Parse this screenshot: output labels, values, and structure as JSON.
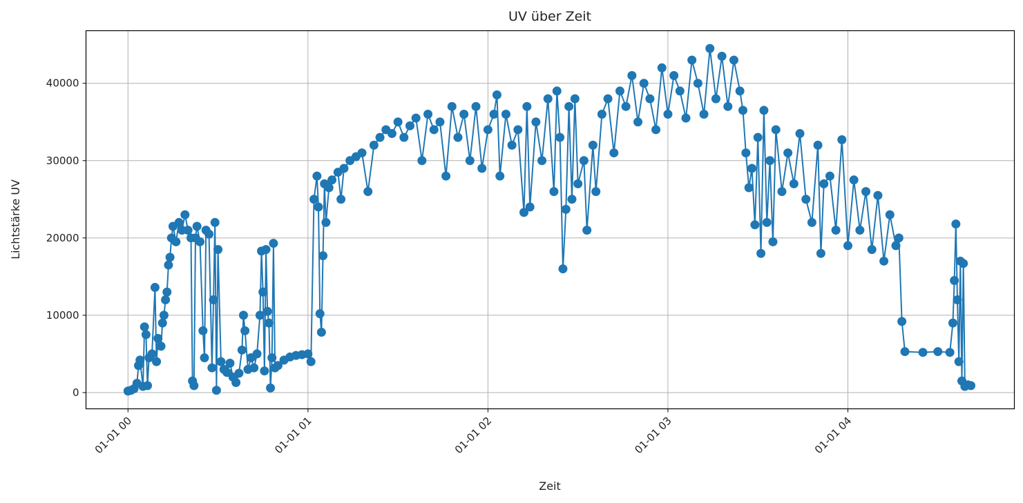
{
  "chart_data": {
    "type": "line",
    "title": "UV über Zeit",
    "xlabel": "Zeit",
    "ylabel": "Lichtstärke UV",
    "x_ticks": [
      "01-01 00",
      "01-01 01",
      "01-01 02",
      "01-01 03",
      "01-01 04"
    ],
    "y_ticks": [
      "0",
      "10000",
      "20000",
      "30000",
      "40000"
    ],
    "y_tick_values": [
      0,
      10000,
      20000,
      30000,
      40000
    ],
    "xlim": [
      "-0:14:00",
      "4:55:30"
    ],
    "ylim": [
      -2100,
      46800
    ],
    "grid": true,
    "marker": "circle",
    "color": "#1f77b4",
    "series": [
      {
        "points": [
          [
            "0:00:00",
            200
          ],
          [
            "0:01:00",
            300
          ],
          [
            "0:02:00",
            500
          ],
          [
            "0:03:00",
            1200
          ],
          [
            "0:03:30",
            3500
          ],
          [
            "0:04:00",
            4200
          ],
          [
            "0:05:00",
            800
          ],
          [
            "0:05:30",
            8500
          ],
          [
            "0:06:00",
            7500
          ],
          [
            "0:06:30",
            900
          ],
          [
            "0:07:00",
            4500
          ],
          [
            "0:08:00",
            5000
          ],
          [
            "0:09:00",
            13600
          ],
          [
            "0:09:30",
            4000
          ],
          [
            "0:10:00",
            7000
          ],
          [
            "0:11:00",
            6000
          ],
          [
            "0:11:30",
            9000
          ],
          [
            "0:12:00",
            10000
          ],
          [
            "0:12:30",
            12000
          ],
          [
            "0:13:00",
            13000
          ],
          [
            "0:13:30",
            16500
          ],
          [
            "0:14:00",
            17500
          ],
          [
            "0:14:30",
            20000
          ],
          [
            "0:15:00",
            21500
          ],
          [
            "0:16:00",
            19500
          ],
          [
            "0:17:00",
            22000
          ],
          [
            "0:18:00",
            21000
          ],
          [
            "0:19:00",
            23000
          ],
          [
            "0:20:00",
            21000
          ],
          [
            "0:21:00",
            20000
          ],
          [
            "0:21:30",
            1500
          ],
          [
            "0:22:00",
            900
          ],
          [
            "0:22:30",
            20000
          ],
          [
            "0:23:00",
            21500
          ],
          [
            "0:24:00",
            19500
          ],
          [
            "0:25:00",
            8000
          ],
          [
            "0:25:30",
            4500
          ],
          [
            "0:26:00",
            21000
          ],
          [
            "0:27:00",
            20500
          ],
          [
            "0:28:00",
            3200
          ],
          [
            "0:28:30",
            12000
          ],
          [
            "0:29:00",
            22000
          ],
          [
            "0:29:30",
            300
          ],
          [
            "0:30:00",
            18500
          ],
          [
            "0:31:00",
            4000
          ],
          [
            "0:32:00",
            3000
          ],
          [
            "0:33:00",
            2600
          ],
          [
            "0:34:00",
            3800
          ],
          [
            "0:35:00",
            2000
          ],
          [
            "0:36:00",
            1300
          ],
          [
            "0:37:00",
            2500
          ],
          [
            "0:38:00",
            5500
          ],
          [
            "0:38:30",
            10000
          ],
          [
            "0:39:00",
            8000
          ],
          [
            "0:40:00",
            3000
          ],
          [
            "0:41:00",
            4500
          ],
          [
            "0:42:00",
            3200
          ],
          [
            "0:43:00",
            5000
          ],
          [
            "0:44:00",
            10000
          ],
          [
            "0:44:30",
            18300
          ],
          [
            "0:45:00",
            13000
          ],
          [
            "0:45:30",
            2800
          ],
          [
            "0:46:00",
            18500
          ],
          [
            "0:46:30",
            10500
          ],
          [
            "0:47:00",
            9000
          ],
          [
            "0:47:30",
            600
          ],
          [
            "0:48:00",
            4500
          ],
          [
            "0:48:30",
            19300
          ],
          [
            "0:49:00",
            3200
          ],
          [
            "0:50:00",
            3500
          ],
          [
            "0:52:00",
            4200
          ],
          [
            "0:54:00",
            4600
          ],
          [
            "0:56:00",
            4800
          ],
          [
            "0:58:00",
            4900
          ],
          [
            "1:00:00",
            5000
          ],
          [
            "1:01:00",
            4000
          ],
          [
            "1:02:00",
            25000
          ],
          [
            "1:03:00",
            28000
          ],
          [
            "1:03:30",
            24000
          ],
          [
            "1:04:00",
            10200
          ],
          [
            "1:04:30",
            7800
          ],
          [
            "1:05:00",
            17700
          ],
          [
            "1:05:30",
            27000
          ],
          [
            "1:06:00",
            22000
          ],
          [
            "1:07:00",
            26500
          ],
          [
            "1:08:00",
            27500
          ],
          [
            "1:10:00",
            28500
          ],
          [
            "1:11:00",
            25000
          ],
          [
            "1:12:00",
            29000
          ],
          [
            "1:14:00",
            30000
          ],
          [
            "1:16:00",
            30500
          ],
          [
            "1:18:00",
            31000
          ],
          [
            "1:20:00",
            26000
          ],
          [
            "1:22:00",
            32000
          ],
          [
            "1:24:00",
            33000
          ],
          [
            "1:26:00",
            34000
          ],
          [
            "1:28:00",
            33500
          ],
          [
            "1:30:00",
            35000
          ],
          [
            "1:32:00",
            33000
          ],
          [
            "1:34:00",
            34500
          ],
          [
            "1:36:00",
            35500
          ],
          [
            "1:38:00",
            30000
          ],
          [
            "1:40:00",
            36000
          ],
          [
            "1:42:00",
            34000
          ],
          [
            "1:44:00",
            35000
          ],
          [
            "1:46:00",
            28000
          ],
          [
            "1:48:00",
            37000
          ],
          [
            "1:50:00",
            33000
          ],
          [
            "1:52:00",
            36000
          ],
          [
            "1:54:00",
            30000
          ],
          [
            "1:56:00",
            37000
          ],
          [
            "1:58:00",
            29000
          ],
          [
            "2:00:00",
            34000
          ],
          [
            "2:02:00",
            36000
          ],
          [
            "2:03:00",
            38500
          ],
          [
            "2:04:00",
            28000
          ],
          [
            "2:06:00",
            36000
          ],
          [
            "2:08:00",
            32000
          ],
          [
            "2:10:00",
            34000
          ],
          [
            "2:12:00",
            23300
          ],
          [
            "2:13:00",
            37000
          ],
          [
            "2:14:00",
            24000
          ],
          [
            "2:16:00",
            35000
          ],
          [
            "2:18:00",
            30000
          ],
          [
            "2:20:00",
            38000
          ],
          [
            "2:22:00",
            26000
          ],
          [
            "2:23:00",
            39000
          ],
          [
            "2:24:00",
            33000
          ],
          [
            "2:25:00",
            16000
          ],
          [
            "2:26:00",
            23700
          ],
          [
            "2:27:00",
            37000
          ],
          [
            "2:28:00",
            25000
          ],
          [
            "2:29:00",
            38000
          ],
          [
            "2:30:00",
            27000
          ],
          [
            "2:32:00",
            30000
          ],
          [
            "2:33:00",
            21000
          ],
          [
            "2:35:00",
            32000
          ],
          [
            "2:36:00",
            26000
          ],
          [
            "2:38:00",
            36000
          ],
          [
            "2:40:00",
            38000
          ],
          [
            "2:42:00",
            31000
          ],
          [
            "2:44:00",
            39000
          ],
          [
            "2:46:00",
            37000
          ],
          [
            "2:48:00",
            41000
          ],
          [
            "2:50:00",
            35000
          ],
          [
            "2:52:00",
            40000
          ],
          [
            "2:54:00",
            38000
          ],
          [
            "2:56:00",
            34000
          ],
          [
            "2:58:00",
            42000
          ],
          [
            "3:00:00",
            36000
          ],
          [
            "3:02:00",
            41000
          ],
          [
            "3:04:00",
            39000
          ],
          [
            "3:06:00",
            35500
          ],
          [
            "3:08:00",
            43000
          ],
          [
            "3:10:00",
            40000
          ],
          [
            "3:12:00",
            36000
          ],
          [
            "3:14:00",
            44500
          ],
          [
            "3:16:00",
            38000
          ],
          [
            "3:18:00",
            43500
          ],
          [
            "3:20:00",
            37000
          ],
          [
            "3:22:00",
            43000
          ],
          [
            "3:24:00",
            39000
          ],
          [
            "3:25:00",
            36500
          ],
          [
            "3:26:00",
            31000
          ],
          [
            "3:27:00",
            26500
          ],
          [
            "3:28:00",
            29000
          ],
          [
            "3:29:00",
            21700
          ],
          [
            "3:30:00",
            33000
          ],
          [
            "3:31:00",
            18000
          ],
          [
            "3:32:00",
            36500
          ],
          [
            "3:33:00",
            22000
          ],
          [
            "3:34:00",
            30000
          ],
          [
            "3:35:00",
            19500
          ],
          [
            "3:36:00",
            34000
          ],
          [
            "3:38:00",
            26000
          ],
          [
            "3:40:00",
            31000
          ],
          [
            "3:42:00",
            27000
          ],
          [
            "3:44:00",
            33500
          ],
          [
            "3:46:00",
            25000
          ],
          [
            "3:48:00",
            22000
          ],
          [
            "3:50:00",
            32000
          ],
          [
            "3:51:00",
            18000
          ],
          [
            "3:52:00",
            27000
          ],
          [
            "3:54:00",
            28000
          ],
          [
            "3:56:00",
            21000
          ],
          [
            "3:58:00",
            32700
          ],
          [
            "4:00:00",
            19000
          ],
          [
            "4:02:00",
            27500
          ],
          [
            "4:04:00",
            21000
          ],
          [
            "4:06:00",
            26000
          ],
          [
            "4:08:00",
            18500
          ],
          [
            "4:10:00",
            25500
          ],
          [
            "4:12:00",
            17000
          ],
          [
            "4:14:00",
            23000
          ],
          [
            "4:16:00",
            19000
          ],
          [
            "4:17:00",
            20000
          ],
          [
            "4:18:00",
            9200
          ],
          [
            "4:19:00",
            5300
          ],
          [
            "4:25:00",
            5200
          ],
          [
            "4:30:00",
            5300
          ],
          [
            "4:34:00",
            5200
          ],
          [
            "4:35:00",
            9000
          ],
          [
            "4:35:30",
            14500
          ],
          [
            "4:36:00",
            21800
          ],
          [
            "4:36:30",
            12000
          ],
          [
            "4:37:00",
            4000
          ],
          [
            "4:37:30",
            17000
          ],
          [
            "4:38:00",
            1500
          ],
          [
            "4:38:30",
            16700
          ],
          [
            "4:39:00",
            800
          ],
          [
            "4:40:00",
            1000
          ],
          [
            "4:41:00",
            900
          ]
        ]
      }
    ]
  }
}
